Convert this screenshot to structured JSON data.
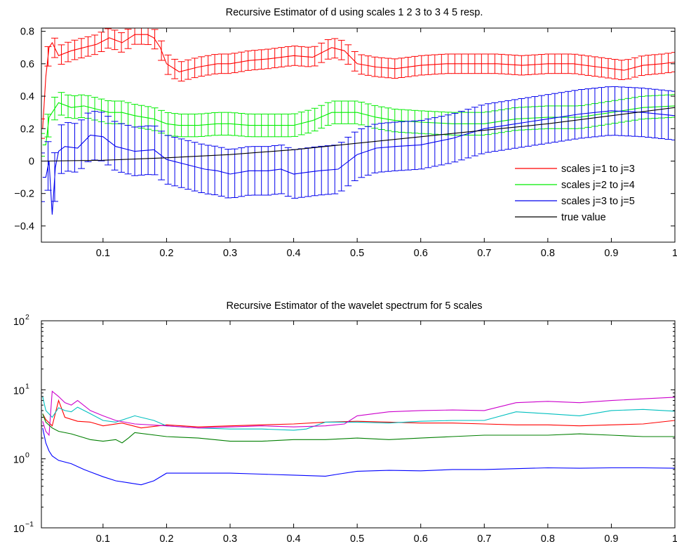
{
  "chart_data": [
    {
      "type": "line",
      "title": "Recursive Estimator of d using scales 1  2  3 to 3  4  5 resp.",
      "xlabel": "",
      "ylabel": "",
      "xlim": [
        0.003,
        1.0
      ],
      "ylim": [
        -0.5,
        0.82
      ],
      "xticks": [
        0.1,
        0.2,
        0.3,
        0.4,
        0.5,
        0.6,
        0.7,
        0.8,
        0.9,
        1
      ],
      "xtick_labels": [
        "0.1",
        "0.2",
        "0.3",
        "0.4",
        "0.5",
        "0.6",
        "0.7",
        "0.8",
        "0.9",
        "1"
      ],
      "yticks": [
        -0.4,
        -0.2,
        0,
        0.2,
        0.4,
        0.6,
        0.8
      ],
      "ytick_labels": [
        "−0.4",
        "−0.2",
        "0",
        "0.2",
        "0.4",
        "0.6",
        "0.8"
      ],
      "grid": false,
      "legend_position": "bottom-right",
      "series": [
        {
          "name": "scales j=1 to j=3",
          "color": "#ff0000",
          "x": [
            0.005,
            0.01,
            0.015,
            0.02,
            0.03,
            0.05,
            0.07,
            0.09,
            0.11,
            0.13,
            0.15,
            0.17,
            0.18,
            0.19,
            0.2,
            0.22,
            0.25,
            0.28,
            0.3,
            0.33,
            0.36,
            0.4,
            0.43,
            0.46,
            0.48,
            0.5,
            0.53,
            0.56,
            0.6,
            0.64,
            0.68,
            0.72,
            0.76,
            0.8,
            0.84,
            0.88,
            0.92,
            0.95,
            0.98,
            1.0
          ],
          "y": [
            0.2,
            0.52,
            0.7,
            0.73,
            0.65,
            0.68,
            0.7,
            0.72,
            0.76,
            0.73,
            0.78,
            0.78,
            0.76,
            0.7,
            0.6,
            0.55,
            0.58,
            0.6,
            0.6,
            0.62,
            0.63,
            0.65,
            0.64,
            0.7,
            0.68,
            0.6,
            0.58,
            0.57,
            0.59,
            0.6,
            0.6,
            0.6,
            0.59,
            0.6,
            0.6,
            0.58,
            0.56,
            0.59,
            0.6,
            0.61
          ],
          "error": 0.06
        },
        {
          "name": "scales j=2 to j=4",
          "color": "#00ee00",
          "x": [
            0.005,
            0.01,
            0.015,
            0.02,
            0.03,
            0.05,
            0.07,
            0.09,
            0.11,
            0.13,
            0.15,
            0.18,
            0.2,
            0.22,
            0.25,
            0.28,
            0.3,
            0.33,
            0.36,
            0.4,
            0.43,
            0.46,
            0.5,
            0.53,
            0.56,
            0.6,
            0.65,
            0.7,
            0.75,
            0.8,
            0.85,
            0.9,
            0.95,
            1.0
          ],
          "y": [
            0.1,
            0.1,
            0.27,
            0.3,
            0.36,
            0.33,
            0.34,
            0.32,
            0.3,
            0.3,
            0.28,
            0.26,
            0.23,
            0.22,
            0.22,
            0.23,
            0.23,
            0.22,
            0.22,
            0.22,
            0.25,
            0.3,
            0.3,
            0.27,
            0.25,
            0.24,
            0.23,
            0.23,
            0.26,
            0.27,
            0.27,
            0.3,
            0.33,
            0.34
          ],
          "error": 0.07
        },
        {
          "name": "scales j=3 to j=5",
          "color": "#0000ee",
          "x": [
            0.005,
            0.01,
            0.015,
            0.02,
            0.025,
            0.03,
            0.04,
            0.06,
            0.08,
            0.1,
            0.12,
            0.15,
            0.18,
            0.2,
            0.23,
            0.26,
            0.28,
            0.3,
            0.33,
            0.36,
            0.38,
            0.4,
            0.42,
            0.44,
            0.47,
            0.5,
            0.53,
            0.56,
            0.6,
            0.65,
            0.7,
            0.75,
            0.8,
            0.85,
            0.9,
            0.95,
            1.0
          ],
          "y": [
            -0.1,
            -0.1,
            0.0,
            -0.33,
            -0.04,
            0.06,
            0.09,
            0.08,
            0.16,
            0.15,
            0.09,
            0.06,
            0.07,
            0.01,
            -0.02,
            -0.05,
            -0.06,
            -0.08,
            -0.06,
            -0.06,
            -0.05,
            -0.08,
            -0.07,
            -0.06,
            -0.05,
            0.04,
            0.08,
            0.09,
            0.1,
            0.14,
            0.2,
            0.23,
            0.26,
            0.29,
            0.31,
            0.3,
            0.28
          ],
          "error": 0.15
        },
        {
          "name": "true value",
          "color": "#000000",
          "x": [
            0.005,
            0.1,
            0.2,
            0.3,
            0.4,
            0.5,
            0.6,
            0.7,
            0.8,
            0.9,
            1.0
          ],
          "y": [
            0.0,
            0.005,
            0.02,
            0.04,
            0.07,
            0.11,
            0.15,
            0.19,
            0.23,
            0.28,
            0.33
          ]
        }
      ]
    },
    {
      "type": "line",
      "title": "Recursive Estimator of the wavelet spectrum for 5 scales",
      "xlabel": "",
      "ylabel": "",
      "yscale": "log",
      "xlim": [
        0.003,
        1.0
      ],
      "ylim": [
        0.1,
        100
      ],
      "xticks": [
        0.1,
        0.2,
        0.3,
        0.4,
        0.5,
        0.6,
        0.7,
        0.8,
        0.9,
        1
      ],
      "xtick_labels": [
        "0.1",
        "0.2",
        "0.3",
        "0.4",
        "0.5",
        "0.6",
        "0.7",
        "0.8",
        "0.9",
        "1"
      ],
      "yticks": [
        0.1,
        1,
        10,
        100
      ],
      "ytick_labels": [
        {
          "base": "10",
          "exp": "−1"
        },
        {
          "base": "10",
          "exp": "0"
        },
        {
          "base": "10",
          "exp": "1"
        },
        {
          "base": "10",
          "exp": "2"
        }
      ],
      "grid": false,
      "series": [
        {
          "color": "#ff0000",
          "x": [
            0.005,
            0.01,
            0.02,
            0.03,
            0.04,
            0.06,
            0.08,
            0.1,
            0.13,
            0.16,
            0.2,
            0.25,
            0.3,
            0.35,
            0.4,
            0.45,
            0.5,
            0.55,
            0.6,
            0.65,
            0.7,
            0.75,
            0.8,
            0.85,
            0.9,
            0.95,
            1.0
          ],
          "y": [
            4.5,
            3.7,
            3.0,
            7.0,
            4.0,
            3.5,
            3.4,
            3.0,
            3.3,
            2.8,
            3.1,
            2.9,
            3.0,
            3.1,
            3.2,
            3.4,
            3.5,
            3.4,
            3.3,
            3.3,
            3.2,
            3.1,
            3.1,
            3.0,
            3.1,
            3.2,
            3.6
          ]
        },
        {
          "color": "#00bfbf",
          "x": [
            0.005,
            0.01,
            0.02,
            0.03,
            0.04,
            0.05,
            0.06,
            0.08,
            0.1,
            0.12,
            0.15,
            0.18,
            0.2,
            0.25,
            0.3,
            0.35,
            0.4,
            0.42,
            0.45,
            0.5,
            0.55,
            0.6,
            0.65,
            0.7,
            0.75,
            0.8,
            0.85,
            0.9,
            0.95,
            1.0
          ],
          "y": [
            8.0,
            5.0,
            4.0,
            5.5,
            5.0,
            4.8,
            5.6,
            4.5,
            3.6,
            3.4,
            4.2,
            3.6,
            3.0,
            2.8,
            2.7,
            2.7,
            2.6,
            2.7,
            3.4,
            3.4,
            3.3,
            3.5,
            3.6,
            3.6,
            4.8,
            4.5,
            4.2,
            5.0,
            5.2,
            4.9
          ]
        },
        {
          "color": "#cc00cc",
          "x": [
            0.005,
            0.01,
            0.015,
            0.02,
            0.03,
            0.04,
            0.05,
            0.06,
            0.08,
            0.1,
            0.12,
            0.15,
            0.2,
            0.25,
            0.3,
            0.35,
            0.4,
            0.45,
            0.48,
            0.5,
            0.55,
            0.6,
            0.65,
            0.7,
            0.75,
            0.8,
            0.85,
            0.9,
            0.95,
            1.0
          ],
          "y": [
            3.5,
            2.5,
            2.2,
            9.5,
            8.0,
            6.5,
            6.0,
            7.0,
            5.0,
            4.2,
            3.6,
            3.2,
            3.0,
            2.8,
            2.9,
            3.0,
            2.9,
            3.0,
            3.2,
            4.2,
            4.8,
            5.0,
            5.1,
            5.0,
            6.5,
            6.8,
            6.5,
            7.0,
            7.4,
            7.8
          ]
        },
        {
          "color": "#007f00",
          "x": [
            0.005,
            0.01,
            0.02,
            0.03,
            0.05,
            0.08,
            0.1,
            0.12,
            0.13,
            0.14,
            0.15,
            0.2,
            0.25,
            0.3,
            0.35,
            0.4,
            0.45,
            0.5,
            0.55,
            0.6,
            0.65,
            0.7,
            0.75,
            0.8,
            0.85,
            0.9,
            0.95,
            1.0
          ],
          "y": [
            4.5,
            3.4,
            2.8,
            2.5,
            2.3,
            1.9,
            1.8,
            1.9,
            1.7,
            2.0,
            2.4,
            2.1,
            2.0,
            1.8,
            1.8,
            1.9,
            1.9,
            2.0,
            1.9,
            2.0,
            2.1,
            2.2,
            2.2,
            2.2,
            2.3,
            2.2,
            2.1,
            2.1
          ]
        },
        {
          "color": "#0000ff",
          "x": [
            0.005,
            0.01,
            0.015,
            0.02,
            0.03,
            0.05,
            0.07,
            0.1,
            0.12,
            0.14,
            0.16,
            0.18,
            0.2,
            0.25,
            0.3,
            0.35,
            0.4,
            0.45,
            0.47,
            0.5,
            0.55,
            0.6,
            0.65,
            0.7,
            0.75,
            0.8,
            0.85,
            0.9,
            0.95,
            1.0
          ],
          "y": [
            2.8,
            1.7,
            1.3,
            1.1,
            0.95,
            0.85,
            0.7,
            0.55,
            0.48,
            0.45,
            0.42,
            0.48,
            0.62,
            0.62,
            0.62,
            0.6,
            0.58,
            0.56,
            0.6,
            0.66,
            0.68,
            0.67,
            0.7,
            0.7,
            0.72,
            0.74,
            0.73,
            0.74,
            0.74,
            0.73
          ]
        }
      ]
    }
  ]
}
